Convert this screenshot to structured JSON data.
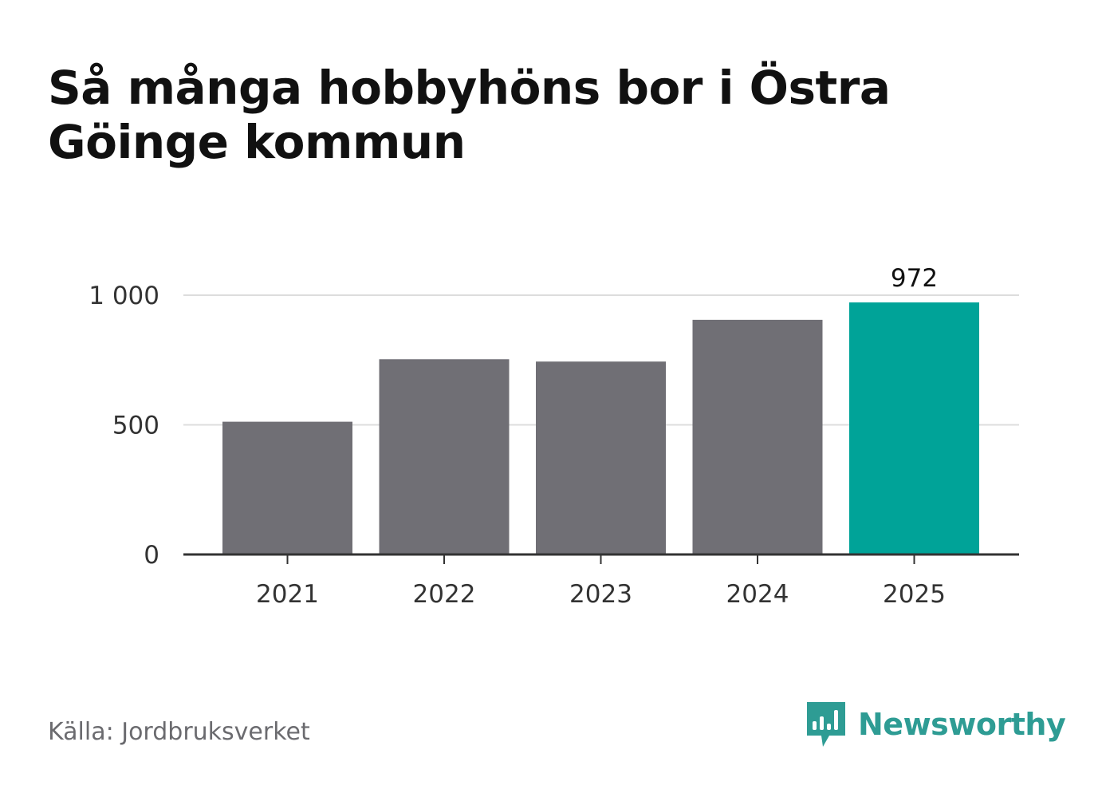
{
  "title": "Så många hobbyhöns bor i Östra Göinge kommun",
  "source": "Källa: Jordbruksverket",
  "brand": {
    "name": "Newsworthy",
    "icon": "newsworthy-logo-icon",
    "color": "#2e9c94"
  },
  "chart_data": {
    "type": "bar",
    "categories": [
      "2021",
      "2022",
      "2023",
      "2024",
      "2025"
    ],
    "values": [
      512,
      753,
      744,
      905,
      972
    ],
    "value_labels": [
      "",
      "",
      "",
      "",
      "972"
    ],
    "yticks": [
      0,
      500,
      1000
    ],
    "ytick_labels": [
      "0",
      "500",
      "1 000"
    ],
    "ylim": [
      0,
      1000
    ],
    "xlabel": "",
    "ylabel": "",
    "grid": true,
    "colors": {
      "bar": "#706f75",
      "highlight": "#00a398",
      "grid": "#dddddd",
      "axis": "#333333",
      "tick_text": "#333333"
    },
    "highlight_index": 4
  }
}
